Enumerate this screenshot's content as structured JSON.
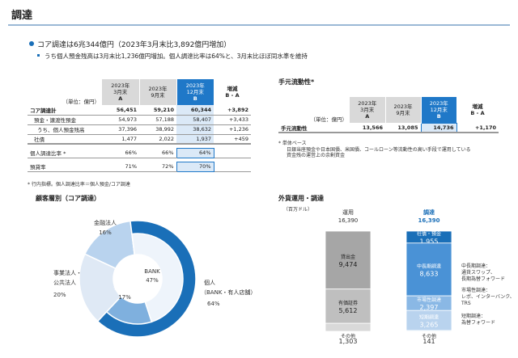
{
  "header": {
    "title": "調達"
  },
  "bullets": {
    "main": "コア調達は6兆344億円（2023年3月末比3,892億円増加）",
    "sub": "うち個人預金残高は3月末比1,236億円増加。個人調達比率は64%と、3月末比ほぼ同水準を維持"
  },
  "core_table": {
    "unit": "（単位：億円）",
    "cols": [
      {
        "l1": "2023年",
        "l2": "3月末",
        "l3": "A"
      },
      {
        "l1": "2023年",
        "l2": "9月末",
        "l3": ""
      },
      {
        "l1": "2023年",
        "l2": "12月末",
        "l3": "B"
      },
      {
        "l1": "増減",
        "l2": "B - A",
        "l3": ""
      }
    ],
    "rows": [
      {
        "label": "コア調達計",
        "a": "56,451",
        "b": "59,210",
        "c": "60,344",
        "d": "+3,892"
      },
      {
        "label": "預金・譲渡性預金",
        "a": "54,973",
        "b": "57,188",
        "c": "58,407",
        "d": "+3,433"
      },
      {
        "label": "うち、個人預金残高",
        "a": "37,396",
        "b": "38,992",
        "c": "38,632",
        "d": "+1,236"
      },
      {
        "label": "社債",
        "a": "1,477",
        "b": "2,022",
        "c": "1,937",
        "d": "+459"
      },
      {
        "label": "個人調達比率 *",
        "a": "66%",
        "b": "66%",
        "c": "64%",
        "d": ""
      },
      {
        "label": "預貸率",
        "a": "71%",
        "b": "72%",
        "c": "70%",
        "d": ""
      }
    ],
    "footnote": "* 行内指標。個人調達比率＝個人預金/コア調達"
  },
  "liquidity": {
    "title": "手元流動性*",
    "unit": "（単位：億円）",
    "cols": [
      {
        "l1": "2023年",
        "l2": "3月末",
        "l3": "A"
      },
      {
        "l1": "2023年",
        "l2": "9月末",
        "l3": ""
      },
      {
        "l1": "2023年",
        "l2": "12月末",
        "l3": "B"
      },
      {
        "l1": "増減",
        "l2": "B - A",
        "l3": ""
      }
    ],
    "row": {
      "label": "手元流動性",
      "a": "13,566",
      "b": "13,085",
      "c": "14,736",
      "d": "+1,170"
    },
    "note1": "* 単体ベース",
    "note2": "日銀当座預金や日本国債、米国債、コールローン等流動性の高い手段で運用している",
    "note3": "資金残の運営上の余剰資金"
  },
  "donut": {
    "title": "顧客層別（コア調達）",
    "segments": [
      {
        "name": "金融法人",
        "value": 16,
        "label1": "金融法人",
        "label2": "16%",
        "color": "#b9d3ee"
      },
      {
        "name": "個人",
        "value": 64,
        "label1": "個人",
        "label2": "（BANK・有人店舗）",
        "label3": "64%",
        "color": "#1a6fb8"
      },
      {
        "name": "事業法人・公共法人",
        "value": 20,
        "label1": "事業法人・",
        "label2": "公共法人",
        "label3": "20%",
        "color": "#dfe9f5"
      }
    ],
    "inner": [
      {
        "name": "BANK",
        "value": 47,
        "label1": "BANK",
        "label2": "47%",
        "color": "#eef4fb"
      },
      {
        "name": "有人店舗",
        "value": 17,
        "label1": "有人店舗",
        "label2": "17%",
        "color": "#7fb0de"
      }
    ]
  },
  "fx": {
    "title": "外貨運用・調達",
    "unit": "（百万ドル）",
    "left": {
      "head": "運用",
      "total": "16,390",
      "segs": [
        {
          "name": "貸出金",
          "value": "9,474",
          "amount": 9474,
          "color": "#a6a6a6"
        },
        {
          "name": "有価証券",
          "value": "5,612",
          "amount": 5612,
          "color": "#bfbfbf"
        },
        {
          "name": "その他",
          "value": "1,303",
          "amount": 1303,
          "color": "#d9d9d9"
        }
      ]
    },
    "right": {
      "head": "調達",
      "total": "16,390",
      "segs": [
        {
          "name": "社債・預金",
          "value": "1,955",
          "amount": 1955,
          "color": "#1a6fb8"
        },
        {
          "name": "中長期調達",
          "value": "8,633",
          "amount": 8633,
          "color": "#4a92d6"
        },
        {
          "name": "市場性調達",
          "value": "2,397",
          "amount": 2397,
          "color": "#8ab8e5"
        },
        {
          "name": "短期調達",
          "value": "3,265",
          "amount": 3265,
          "color": "#b9d3ee"
        },
        {
          "name": "その他",
          "value": "141",
          "amount": 141,
          "color": "#dde9f6"
        }
      ]
    },
    "legend": [
      {
        "t1": "中長期調達：",
        "t2": "通貨スワップ、",
        "t3": "長期為替フォワード"
      },
      {
        "t1": "市場性調達：",
        "t2": "レポ、インターバンク、",
        "t3": "TRS"
      },
      {
        "t1": "短期調達：",
        "t2": "為替フォワード",
        "t3": ""
      }
    ]
  }
}
